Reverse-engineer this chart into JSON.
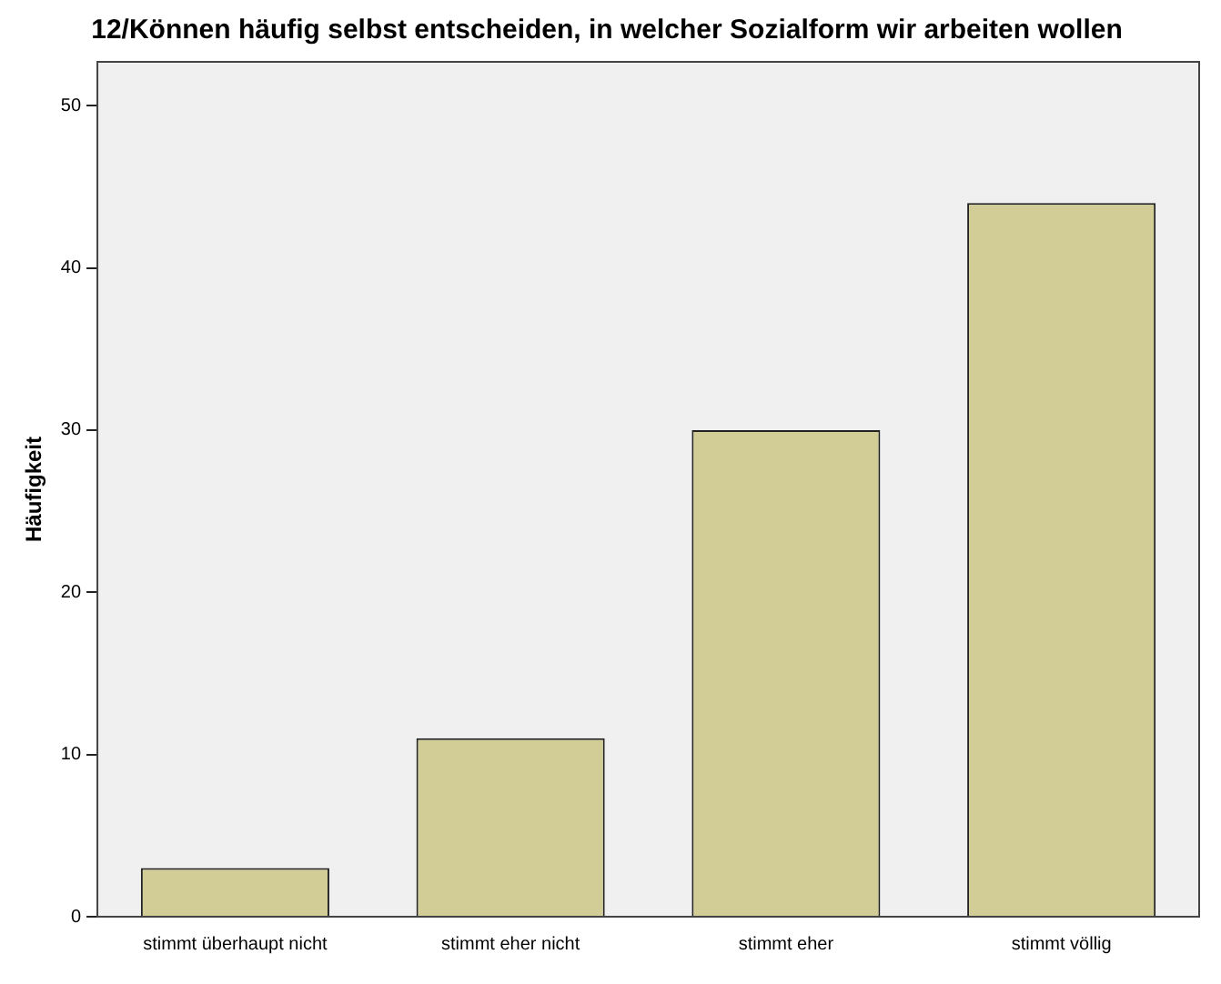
{
  "chart_data": {
    "type": "bar",
    "title": "12/Können häufig selbst entscheiden, in welcher Sozialform wir arbeiten wollen",
    "ylabel": "Häufigkeit",
    "categories": [
      "stimmt überhaupt nicht",
      "stimmt eher nicht",
      "stimmt eher",
      "stimmt völlig"
    ],
    "values": [
      3,
      11,
      30,
      44
    ],
    "color": "#d2cc97",
    "ylim": [
      0,
      52.7
    ],
    "yticks": [
      0,
      10,
      20,
      30,
      40,
      50
    ],
    "grid": false,
    "legend": false
  }
}
